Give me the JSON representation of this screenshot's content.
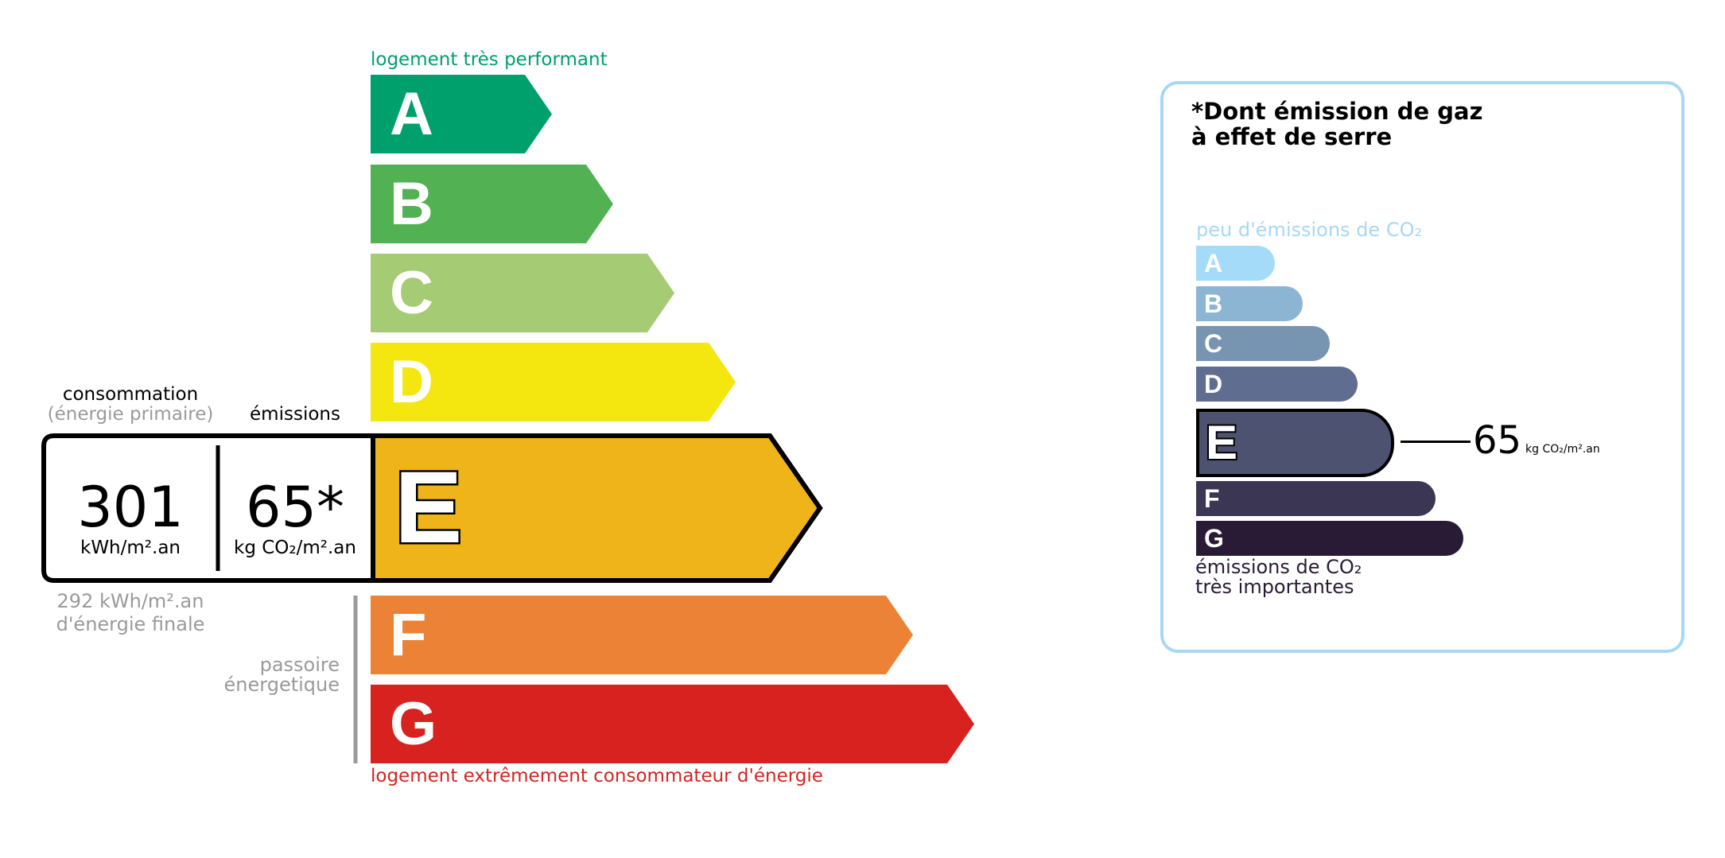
{
  "energy_scale": {
    "top_label": "logement très performant",
    "bottom_label": "logement extrêmement consommateur d'énergie",
    "classes": [
      {
        "letter": "A",
        "color": "#00a06d"
      },
      {
        "letter": "B",
        "color": "#52b153"
      },
      {
        "letter": "C",
        "color": "#a5cc74"
      },
      {
        "letter": "D",
        "color": "#f4e70f"
      },
      {
        "letter": "E",
        "color": "#f0b41b"
      },
      {
        "letter": "F",
        "color": "#ec8235"
      },
      {
        "letter": "G",
        "color": "#d7221f"
      }
    ],
    "current_class": "E",
    "passoire_label_1": "passoire",
    "passoire_label_2": "énergetique"
  },
  "readout": {
    "consumption_label": "consommation",
    "consumption_sublabel": "(énergie primaire)",
    "emissions_label": "émissions",
    "consumption_value": "301",
    "consumption_unit": "kWh/m².an",
    "emissions_value": "65*",
    "emissions_unit": "kg CO₂/m².an",
    "final_energy_value": "292 kWh/m².an",
    "final_energy_label": "d'énergie finale"
  },
  "ghg_panel": {
    "title_line1": "*Dont émission de gaz",
    "title_line2": "à effet de serre",
    "top_label": "peu d'émissions de CO₂",
    "bottom_label_1": "émissions de CO₂",
    "bottom_label_2": "très importantes",
    "classes": [
      {
        "letter": "A",
        "color": "#a4dbf8"
      },
      {
        "letter": "B",
        "color": "#8cb4d3"
      },
      {
        "letter": "C",
        "color": "#7794b1"
      },
      {
        "letter": "D",
        "color": "#5f6d90"
      },
      {
        "letter": "E",
        "color": "#4d5270"
      },
      {
        "letter": "F",
        "color": "#3a3654"
      },
      {
        "letter": "G",
        "color": "#291b35"
      }
    ],
    "current_class": "E",
    "value": "65",
    "unit": "kg CO₂/m².an",
    "border_color": "#a6d8f5"
  }
}
